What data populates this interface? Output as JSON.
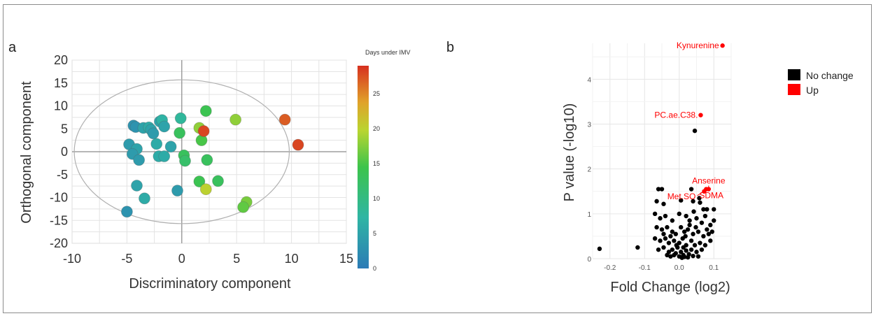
{
  "panel_a_label": "a",
  "panel_b_label": "b",
  "chart_data": [
    {
      "type": "scatter",
      "panel": "a",
      "xlabel": "Discriminatory component",
      "ylabel": "Orthogonal component",
      "xlim": [
        -10,
        15
      ],
      "ylim": [
        -20,
        20
      ],
      "xticks": [
        "-10",
        "-5",
        "0",
        "5",
        "10",
        "15"
      ],
      "yticks": [
        "20",
        "15",
        "10",
        "5",
        "0",
        "-5",
        "-10",
        "-15",
        "-20"
      ],
      "grid": true,
      "colorbar": {
        "title": "Days under  IMV",
        "range": [
          0,
          29
        ],
        "ticks": [
          "25",
          "20",
          "15",
          "10",
          "5",
          "0"
        ]
      },
      "ellipse": {
        "center": [
          0,
          0
        ],
        "rx": 9.8,
        "ry": 15.7
      },
      "points": [
        {
          "x": -4.4,
          "y": 5.7,
          "c": 3
        },
        {
          "x": -4.2,
          "y": 5.4,
          "c": 3
        },
        {
          "x": -3.5,
          "y": 5.2,
          "c": 5
        },
        {
          "x": -3.0,
          "y": 5.3,
          "c": 6
        },
        {
          "x": -2.8,
          "y": 4.8,
          "c": 5
        },
        {
          "x": -2.6,
          "y": 4.0,
          "c": 4
        },
        {
          "x": -2.0,
          "y": 6.6,
          "c": 5
        },
        {
          "x": -1.8,
          "y": 6.9,
          "c": 7
        },
        {
          "x": -1.6,
          "y": 5.5,
          "c": 5
        },
        {
          "x": -2.3,
          "y": 1.7,
          "c": 6
        },
        {
          "x": -4.8,
          "y": 1.6,
          "c": 4
        },
        {
          "x": -4.1,
          "y": 0.6,
          "c": 5
        },
        {
          "x": -4.5,
          "y": -0.5,
          "c": 4
        },
        {
          "x": -3.9,
          "y": -1.8,
          "c": 4
        },
        {
          "x": -2.1,
          "y": -1.0,
          "c": 6
        },
        {
          "x": -1.6,
          "y": -1.0,
          "c": 6
        },
        {
          "x": -1.0,
          "y": 1.1,
          "c": 5
        },
        {
          "x": -0.1,
          "y": 7.3,
          "c": 8
        },
        {
          "x": -0.2,
          "y": 4.1,
          "c": 13
        },
        {
          "x": 0.2,
          "y": -0.8,
          "c": 13
        },
        {
          "x": 0.3,
          "y": -2.0,
          "c": 12
        },
        {
          "x": 1.6,
          "y": 5.2,
          "c": 18
        },
        {
          "x": 1.8,
          "y": 2.5,
          "c": 15
        },
        {
          "x": 2.0,
          "y": 4.5,
          "c": 28
        },
        {
          "x": 2.2,
          "y": 8.9,
          "c": 14
        },
        {
          "x": 2.3,
          "y": -1.8,
          "c": 13
        },
        {
          "x": 1.6,
          "y": -6.5,
          "c": 14
        },
        {
          "x": 2.2,
          "y": -8.2,
          "c": 20
        },
        {
          "x": 3.3,
          "y": -6.4,
          "c": 13
        },
        {
          "x": 4.9,
          "y": 7.0,
          "c": 18
        },
        {
          "x": 5.9,
          "y": -11.0,
          "c": 17
        },
        {
          "x": 5.6,
          "y": -12.1,
          "c": 16
        },
        {
          "x": 9.4,
          "y": 7.0,
          "c": 27
        },
        {
          "x": 10.6,
          "y": 1.5,
          "c": 28
        },
        {
          "x": -4.1,
          "y": -7.4,
          "c": 5
        },
        {
          "x": -3.4,
          "y": -10.2,
          "c": 6
        },
        {
          "x": -0.4,
          "y": -8.5,
          "c": 4
        },
        {
          "x": -5.0,
          "y": -13.1,
          "c": 3
        }
      ]
    },
    {
      "type": "scatter",
      "panel": "b",
      "xlabel": "Fold Change (log2)",
      "ylabel": "P value (-log10)",
      "xlim": [
        -0.25,
        0.15
      ],
      "ylim": [
        0,
        4.8
      ],
      "xticks": [
        -0.2,
        -0.1,
        0.0,
        0.1
      ],
      "xtick_labels": [
        "-0.2",
        "-0.1",
        "0.0",
        "0.1"
      ],
      "yticks": [
        0,
        1,
        2,
        3,
        4
      ],
      "ytick_labels": [
        "0",
        "1",
        "2",
        "3",
        "4"
      ],
      "grid": true,
      "legend": {
        "position": "right",
        "entries": [
          {
            "label": "No change",
            "color": "#000000"
          },
          {
            "label": "Up",
            "color": "#ff0000"
          }
        ]
      },
      "labeled_points": [
        {
          "label": "Kynurenine",
          "x": 0.125,
          "y": 4.75,
          "color": "#ff0000"
        },
        {
          "label": "PC.ae.C38.",
          "x": 0.062,
          "y": 3.2,
          "color": "#ff0000"
        },
        {
          "label": "Anserine",
          "x": 0.085,
          "y": 1.55,
          "color": "#ff0000"
        },
        {
          "label": "Met.SO",
          "x": 0.072,
          "y": 1.5,
          "color": "#ff0000"
        },
        {
          "label": "SDMA",
          "x": 0.078,
          "y": 1.55,
          "color": "#ff0000"
        }
      ],
      "points": [
        {
          "x": -0.23,
          "y": 0.22
        },
        {
          "x": -0.12,
          "y": 0.25
        },
        {
          "x": 0.045,
          "y": 2.85
        },
        {
          "x": -0.06,
          "y": 1.55
        },
        {
          "x": -0.05,
          "y": 1.55
        },
        {
          "x": 0.035,
          "y": 1.55
        },
        {
          "x": -0.065,
          "y": 1.28
        },
        {
          "x": -0.045,
          "y": 1.22
        },
        {
          "x": 0.005,
          "y": 1.3
        },
        {
          "x": 0.04,
          "y": 1.28
        },
        {
          "x": 0.06,
          "y": 1.25
        },
        {
          "x": 0.07,
          "y": 1.1
        },
        {
          "x": 0.08,
          "y": 1.1
        },
        {
          "x": 0.1,
          "y": 1.1
        },
        {
          "x": -0.07,
          "y": 1.0
        },
        {
          "x": -0.055,
          "y": 0.9
        },
        {
          "x": -0.04,
          "y": 0.95
        },
        {
          "x": -0.02,
          "y": 0.85
        },
        {
          "x": 0.0,
          "y": 1.0
        },
        {
          "x": 0.02,
          "y": 0.95
        },
        {
          "x": 0.03,
          "y": 0.85
        },
        {
          "x": 0.05,
          "y": 0.9
        },
        {
          "x": 0.065,
          "y": 0.8
        },
        {
          "x": 0.075,
          "y": 0.95
        },
        {
          "x": 0.09,
          "y": 0.75
        },
        {
          "x": -0.065,
          "y": 0.7
        },
        {
          "x": -0.05,
          "y": 0.65
        },
        {
          "x": -0.035,
          "y": 0.7
        },
        {
          "x": -0.02,
          "y": 0.6
        },
        {
          "x": -0.01,
          "y": 0.55
        },
        {
          "x": 0.005,
          "y": 0.7
        },
        {
          "x": 0.015,
          "y": 0.6
        },
        {
          "x": 0.025,
          "y": 0.65
        },
        {
          "x": 0.04,
          "y": 0.55
        },
        {
          "x": 0.055,
          "y": 0.6
        },
        {
          "x": 0.07,
          "y": 0.5
        },
        {
          "x": 0.085,
          "y": 0.55
        },
        {
          "x": -0.07,
          "y": 0.45
        },
        {
          "x": -0.055,
          "y": 0.4
        },
        {
          "x": -0.04,
          "y": 0.45
        },
        {
          "x": -0.03,
          "y": 0.35
        },
        {
          "x": -0.015,
          "y": 0.4
        },
        {
          "x": 0.0,
          "y": 0.35
        },
        {
          "x": 0.01,
          "y": 0.45
        },
        {
          "x": 0.02,
          "y": 0.3
        },
        {
          "x": 0.035,
          "y": 0.4
        },
        {
          "x": 0.045,
          "y": 0.3
        },
        {
          "x": 0.06,
          "y": 0.35
        },
        {
          "x": 0.075,
          "y": 0.3
        },
        {
          "x": 0.09,
          "y": 0.4
        },
        {
          "x": -0.06,
          "y": 0.2
        },
        {
          "x": -0.045,
          "y": 0.25
        },
        {
          "x": -0.03,
          "y": 0.15
        },
        {
          "x": -0.02,
          "y": 0.2
        },
        {
          "x": -0.01,
          "y": 0.12
        },
        {
          "x": -0.005,
          "y": 0.25
        },
        {
          "x": 0.005,
          "y": 0.15
        },
        {
          "x": 0.012,
          "y": 0.08
        },
        {
          "x": 0.02,
          "y": 0.18
        },
        {
          "x": 0.028,
          "y": 0.1
        },
        {
          "x": 0.035,
          "y": 0.2
        },
        {
          "x": 0.05,
          "y": 0.15
        },
        {
          "x": 0.065,
          "y": 0.2
        },
        {
          "x": -0.025,
          "y": 0.05
        },
        {
          "x": -0.015,
          "y": 0.08
        },
        {
          "x": 0.0,
          "y": 0.05
        },
        {
          "x": 0.008,
          "y": 0.02
        },
        {
          "x": 0.015,
          "y": 0.04
        },
        {
          "x": 0.025,
          "y": 0.03
        },
        {
          "x": 0.04,
          "y": 0.06
        },
        {
          "x": -0.035,
          "y": 0.08
        },
        {
          "x": 0.055,
          "y": 0.05
        },
        {
          "x": -0.008,
          "y": 0.3
        },
        {
          "x": 0.018,
          "y": 0.5
        },
        {
          "x": 0.03,
          "y": 0.75
        },
        {
          "x": -0.025,
          "y": 0.5
        },
        {
          "x": 0.048,
          "y": 0.7
        },
        {
          "x": 0.08,
          "y": 0.65
        },
        {
          "x": 0.095,
          "y": 0.6
        },
        {
          "x": 0.1,
          "y": 0.85
        },
        {
          "x": -0.045,
          "y": 0.55
        },
        {
          "x": 0.012,
          "y": 0.25
        },
        {
          "x": 0.042,
          "y": 1.05
        },
        {
          "x": 0.058,
          "y": 1.35
        }
      ]
    }
  ]
}
